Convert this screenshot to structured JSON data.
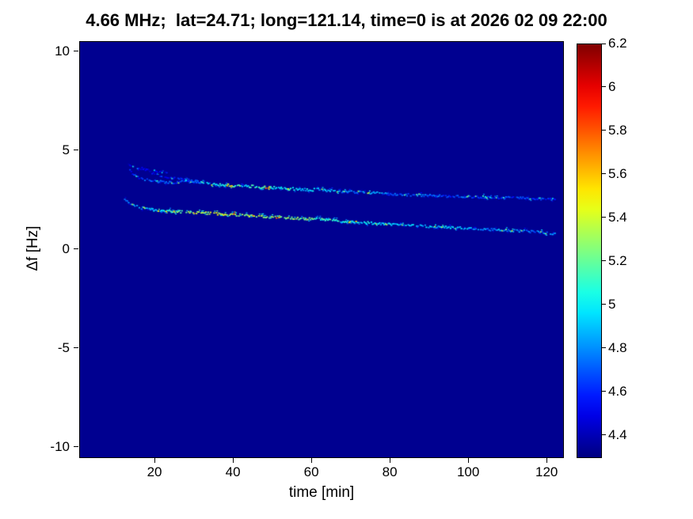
{
  "chart_data": {
    "type": "heatmap",
    "title": "4.66 MHz;  lat=24.71; long=121.14, time=0 is at 2026 02 09 22:00",
    "xlabel": "time [min]",
    "ylabel": "Δf [Hz]",
    "xlim": [
      0.8,
      124
    ],
    "ylim": [
      -10.5,
      10.5
    ],
    "xticks": [
      "20",
      "40",
      "60",
      "80",
      "100",
      "120"
    ],
    "yticks": [
      "10",
      "5",
      "0",
      "-5",
      "-10"
    ],
    "grid": false,
    "legend": "none",
    "colormap": "jet",
    "background_value": 4.33,
    "colorbar": {
      "min": 4.3,
      "max": 6.2,
      "tick_labels": [
        "6.2",
        "6",
        "5.8",
        "5.6",
        "5.4",
        "5.2",
        "5",
        "4.8",
        "4.6",
        "4.4"
      ],
      "tick_values": [
        6.2,
        6.0,
        5.8,
        5.6,
        5.4,
        5.2,
        5.0,
        4.8,
        4.6,
        4.4
      ],
      "position": "right"
    },
    "background_color": "#000090",
    "series": [
      {
        "name": "upper-trace",
        "points": [
          [
            13,
            4.15,
            4.55
          ],
          [
            14,
            3.9,
            4.6
          ],
          [
            15,
            3.75,
            4.65
          ],
          [
            16,
            3.65,
            4.6
          ],
          [
            18,
            3.55,
            4.7
          ],
          [
            20,
            3.5,
            4.7
          ],
          [
            22,
            3.45,
            4.7
          ],
          [
            24,
            3.42,
            4.65
          ],
          [
            26,
            3.45,
            4.7
          ],
          [
            28,
            3.48,
            4.75
          ],
          [
            30,
            3.45,
            4.8
          ],
          [
            33,
            3.38,
            4.9
          ],
          [
            36,
            3.32,
            5.0
          ],
          [
            39,
            3.28,
            5.1
          ],
          [
            42,
            3.25,
            5.0
          ],
          [
            45,
            3.22,
            5.1
          ],
          [
            48,
            3.18,
            5.2
          ],
          [
            51,
            3.15,
            5.0
          ],
          [
            54,
            3.12,
            5.1
          ],
          [
            57,
            3.08,
            4.9
          ],
          [
            60,
            3.05,
            5.0
          ],
          [
            61,
            3.15,
            4.9
          ],
          [
            62,
            3.05,
            4.9
          ],
          [
            65,
            3.0,
            4.9
          ],
          [
            68,
            2.97,
            4.8
          ],
          [
            71,
            2.94,
            4.8
          ],
          [
            74,
            2.9,
            4.8
          ],
          [
            77,
            2.88,
            4.8
          ],
          [
            80,
            2.85,
            4.75
          ],
          [
            84,
            2.8,
            4.7
          ],
          [
            88,
            2.78,
            4.75
          ],
          [
            92,
            2.75,
            4.7
          ],
          [
            96,
            2.72,
            4.7
          ],
          [
            100,
            2.7,
            4.7
          ],
          [
            104,
            2.68,
            4.65
          ],
          [
            108,
            2.66,
            4.7
          ],
          [
            112,
            2.64,
            4.65
          ],
          [
            116,
            2.62,
            4.6
          ],
          [
            120,
            2.6,
            4.65
          ],
          [
            122,
            2.58,
            4.6
          ]
        ]
      },
      {
        "name": "lower-trace",
        "points": [
          [
            12,
            2.55,
            4.7
          ],
          [
            13,
            2.4,
            4.8
          ],
          [
            14,
            2.3,
            4.85
          ],
          [
            16,
            2.15,
            4.9
          ],
          [
            18,
            2.08,
            4.9
          ],
          [
            20,
            2.02,
            4.9
          ],
          [
            22,
            2.0,
            5.0
          ],
          [
            24,
            1.97,
            5.1
          ],
          [
            26,
            1.95,
            5.2
          ],
          [
            28,
            1.93,
            5.3
          ],
          [
            30,
            1.9,
            5.3
          ],
          [
            33,
            1.87,
            5.35
          ],
          [
            36,
            1.84,
            5.4
          ],
          [
            39,
            1.8,
            5.35
          ],
          [
            42,
            1.77,
            5.3
          ],
          [
            45,
            1.74,
            5.35
          ],
          [
            48,
            1.7,
            5.3
          ],
          [
            51,
            1.67,
            5.25
          ],
          [
            54,
            1.64,
            5.3
          ],
          [
            57,
            1.6,
            5.2
          ],
          [
            60,
            1.57,
            5.2
          ],
          [
            61,
            1.67,
            5.1
          ],
          [
            62,
            1.55,
            5.15
          ],
          [
            65,
            1.5,
            5.1
          ],
          [
            68,
            1.46,
            5.0
          ],
          [
            71,
            1.42,
            5.0
          ],
          [
            74,
            1.38,
            5.0
          ],
          [
            77,
            1.34,
            4.95
          ],
          [
            80,
            1.3,
            4.9
          ],
          [
            84,
            1.26,
            4.9
          ],
          [
            88,
            1.22,
            4.9
          ],
          [
            92,
            1.18,
            4.95
          ],
          [
            96,
            1.14,
            4.9
          ],
          [
            100,
            1.1,
            4.85
          ],
          [
            104,
            1.06,
            4.8
          ],
          [
            108,
            1.02,
            4.8
          ],
          [
            112,
            0.98,
            4.8
          ],
          [
            116,
            0.94,
            4.75
          ],
          [
            120,
            0.88,
            4.8
          ],
          [
            122,
            0.82,
            4.75
          ]
        ]
      },
      {
        "name": "upper-branch",
        "points": [
          [
            19,
            3.9,
            4.55
          ],
          [
            22,
            3.75,
            4.6
          ],
          [
            25,
            3.65,
            4.55
          ],
          [
            28,
            3.55,
            4.6
          ],
          [
            31,
            3.48,
            4.55
          ]
        ]
      },
      {
        "name": "start-wisp",
        "points": [
          [
            13,
            4.35,
            4.5
          ],
          [
            15,
            4.2,
            4.5
          ],
          [
            17,
            4.1,
            4.45
          ],
          [
            19,
            4.0,
            4.5
          ],
          [
            21,
            3.95,
            4.45
          ],
          [
            23,
            3.9,
            4.5
          ]
        ]
      }
    ]
  }
}
